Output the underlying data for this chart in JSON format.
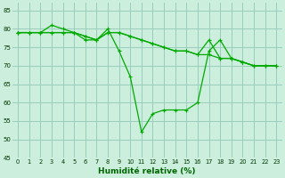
{
  "xlabel": "Humidité relative (%)",
  "bg_color": "#cceedd",
  "grid_color": "#99ccbb",
  "line_color": "#00aa00",
  "label_color": "#006600",
  "ylim": [
    45,
    87
  ],
  "xlim": [
    -0.5,
    23.5
  ],
  "yticks": [
    45,
    50,
    55,
    60,
    65,
    70,
    75,
    80,
    85
  ],
  "xticks": [
    0,
    1,
    2,
    3,
    4,
    5,
    6,
    7,
    8,
    9,
    10,
    11,
    12,
    13,
    14,
    15,
    16,
    17,
    18,
    19,
    20,
    21,
    22,
    23
  ],
  "series1": {
    "x": [
      0,
      1,
      2,
      3,
      4,
      5,
      6,
      7,
      8,
      9,
      10,
      11,
      12,
      13,
      14,
      15,
      16,
      17,
      18,
      19,
      20,
      21,
      22,
      23
    ],
    "y": [
      79,
      79,
      79,
      81,
      80,
      79,
      77,
      77,
      80,
      74,
      67,
      52,
      57,
      58,
      58,
      58,
      60,
      74,
      77,
      72,
      71,
      70,
      70,
      70
    ]
  },
  "series2": {
    "x": [
      0,
      1,
      2,
      3,
      4,
      5,
      6,
      7,
      8,
      9,
      10,
      11,
      12,
      13,
      14,
      15,
      16,
      17,
      18,
      19,
      20,
      21,
      22,
      23
    ],
    "y": [
      79,
      79,
      79,
      79,
      79,
      79,
      78,
      77,
      79,
      79,
      78,
      77,
      76,
      75,
      74,
      74,
      73,
      73,
      72,
      72,
      71,
      70,
      70,
      70
    ]
  },
  "series3": {
    "x": [
      0,
      1,
      2,
      3,
      4,
      5,
      6,
      7,
      8,
      9,
      10,
      11,
      12,
      13,
      14,
      15,
      16,
      17,
      18,
      19,
      20,
      21,
      22,
      23
    ],
    "y": [
      79,
      79,
      79,
      79,
      79,
      79,
      78,
      77,
      79,
      79,
      78,
      77,
      76,
      75,
      74,
      74,
      73,
      77,
      72,
      72,
      71,
      70,
      70,
      70
    ]
  }
}
